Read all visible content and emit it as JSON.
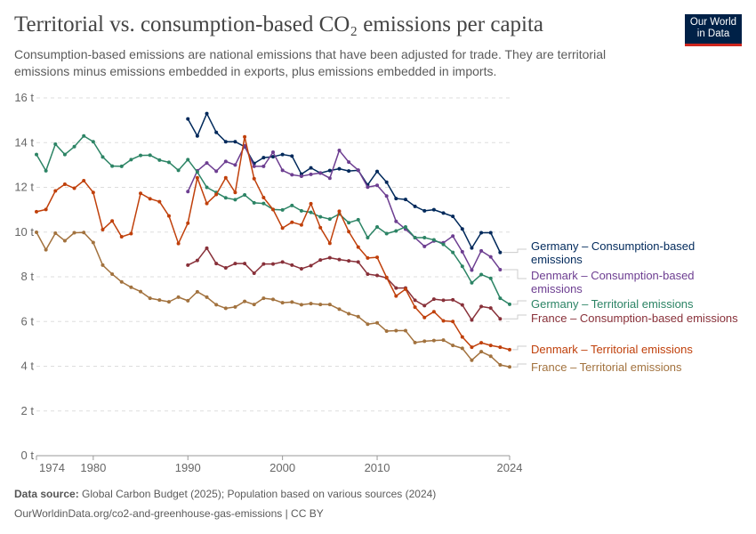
{
  "header": {
    "title": "Territorial vs. consumption-based CO₂ emissions per capita",
    "subtitle": "Consumption-based emissions are national emissions that have been adjusted for trade. They are territorial emissions minus emissions embedded in exports, plus emissions embedded in imports.",
    "logo_text": "Our World in Data"
  },
  "footer": {
    "source_label": "Data source:",
    "source_text": "Global Carbon Budget (2025); Population based on various sources (2024)",
    "url_license": "OurWorldinData.org/co2-and-greenhouse-gas-emissions | CC BY"
  },
  "chart_data": {
    "type": "line",
    "title": "Territorial vs. consumption-based CO₂ emissions per capita",
    "xlim": [
      1974,
      2024
    ],
    "ylim": [
      0,
      16
    ],
    "x_ticks": [
      "1974",
      "1980",
      "1990",
      "2000",
      "2010",
      "2024"
    ],
    "x_tick_values": [
      1974,
      1980,
      1990,
      2000,
      2010,
      2024
    ],
    "y_ticks": [
      "0 t",
      "2 t",
      "4 t",
      "6 t",
      "8 t",
      "10 t",
      "12 t",
      "14 t",
      "16 t"
    ],
    "y_tick_values": [
      0,
      2,
      4,
      6,
      8,
      10,
      12,
      14,
      16
    ],
    "grid": true,
    "legend": "right (line-end labels)",
    "series": [
      {
        "name": "Germany – Consumption-based emissions",
        "color": "#00295b",
        "start_year": 1990,
        "values": [
          15.06,
          14.3,
          15.3,
          14.46,
          14.04,
          14.04,
          13.82,
          13.07,
          13.33,
          13.37,
          13.47,
          13.4,
          12.59,
          12.87,
          12.64,
          12.75,
          12.83,
          12.73,
          12.76,
          12.11,
          12.71,
          12.23,
          11.5,
          11.46,
          11.15,
          10.95,
          11.0,
          10.85,
          10.7,
          10.14,
          9.29,
          9.97,
          9.97,
          9.09
        ]
      },
      {
        "name": "Denmark – Consumption-based emissions",
        "color": "#6d3e91",
        "start_year": 1990,
        "values": [
          11.81,
          12.74,
          13.09,
          12.72,
          13.16,
          13.0,
          13.86,
          12.94,
          12.94,
          13.57,
          12.76,
          12.56,
          12.5,
          12.58,
          12.64,
          12.41,
          13.65,
          13.13,
          12.77,
          12.01,
          12.09,
          11.61,
          10.48,
          10.13,
          9.75,
          9.36,
          9.6,
          9.52,
          9.82,
          9.12,
          8.3,
          9.16,
          8.89,
          8.32
        ]
      },
      {
        "name": "Germany – Territorial emissions",
        "color": "#2c8465",
        "start_year": 1974,
        "values": [
          13.47,
          12.74,
          13.93,
          13.47,
          13.82,
          14.3,
          14.04,
          13.36,
          12.95,
          12.94,
          13.24,
          13.43,
          13.44,
          13.22,
          13.12,
          12.76,
          13.24,
          12.68,
          12.0,
          11.77,
          11.53,
          11.45,
          11.66,
          11.31,
          11.28,
          11.01,
          10.99,
          11.19,
          10.95,
          10.88,
          10.68,
          10.58,
          10.81,
          10.42,
          10.55,
          9.75,
          10.23,
          9.93,
          10.05,
          10.23,
          9.75,
          9.75,
          9.65,
          9.45,
          9.09,
          8.47,
          7.73,
          8.1,
          7.93,
          7.04,
          6.77
        ]
      },
      {
        "name": "France – Consumption-based emissions",
        "color": "#883039",
        "start_year": 1990,
        "values": [
          8.52,
          8.73,
          9.28,
          8.59,
          8.4,
          8.59,
          8.59,
          8.16,
          8.57,
          8.57,
          8.66,
          8.52,
          8.36,
          8.5,
          8.75,
          8.85,
          8.77,
          8.71,
          8.66,
          8.12,
          8.06,
          7.95,
          7.5,
          7.5,
          6.95,
          6.71,
          7.0,
          6.95,
          6.97,
          6.74,
          6.07,
          6.67,
          6.6,
          6.12
        ]
      },
      {
        "name": "Denmark – Territorial emissions",
        "color": "#c0400b",
        "start_year": 1974,
        "values": [
          10.91,
          11.01,
          11.84,
          12.14,
          11.96,
          12.3,
          11.77,
          10.11,
          10.5,
          9.79,
          9.93,
          11.73,
          11.49,
          11.36,
          10.72,
          9.49,
          10.4,
          12.43,
          11.28,
          11.68,
          12.43,
          11.77,
          14.26,
          12.39,
          11.54,
          11.01,
          10.18,
          10.44,
          10.32,
          11.27,
          10.2,
          9.5,
          10.93,
          10.02,
          9.33,
          8.84,
          8.87,
          7.97,
          7.14,
          7.45,
          6.64,
          6.18,
          6.44,
          6.03,
          6.0,
          5.31,
          4.85,
          5.05,
          4.93,
          4.85,
          4.74
        ]
      },
      {
        "name": "France – Territorial emissions",
        "color": "#a2723e",
        "start_year": 1974,
        "values": [
          9.99,
          9.21,
          9.95,
          9.61,
          9.97,
          9.98,
          9.53,
          8.52,
          8.12,
          7.77,
          7.53,
          7.34,
          7.04,
          6.96,
          6.88,
          7.09,
          6.93,
          7.33,
          7.09,
          6.75,
          6.59,
          6.65,
          6.9,
          6.76,
          7.04,
          6.99,
          6.84,
          6.87,
          6.75,
          6.8,
          6.76,
          6.76,
          6.55,
          6.35,
          6.22,
          5.88,
          5.94,
          5.57,
          5.59,
          5.59,
          5.06,
          5.12,
          5.15,
          5.17,
          4.93,
          4.8,
          4.27,
          4.65,
          4.45,
          4.06,
          3.97
        ]
      }
    ],
    "legend_labels": [
      {
        "line1": "Germany – Consumption-based",
        "line2": "emissions"
      },
      {
        "line1": "Denmark – Consumption-based",
        "line2": "emissions"
      },
      {
        "line1": "Germany – Territorial emissions",
        "line2": ""
      },
      {
        "line1": "France – Consumption-based emissions",
        "line2": ""
      },
      {
        "line1": "Denmark – Territorial emissions",
        "line2": ""
      },
      {
        "line1": "France – Territorial emissions",
        "line2": ""
      }
    ]
  }
}
